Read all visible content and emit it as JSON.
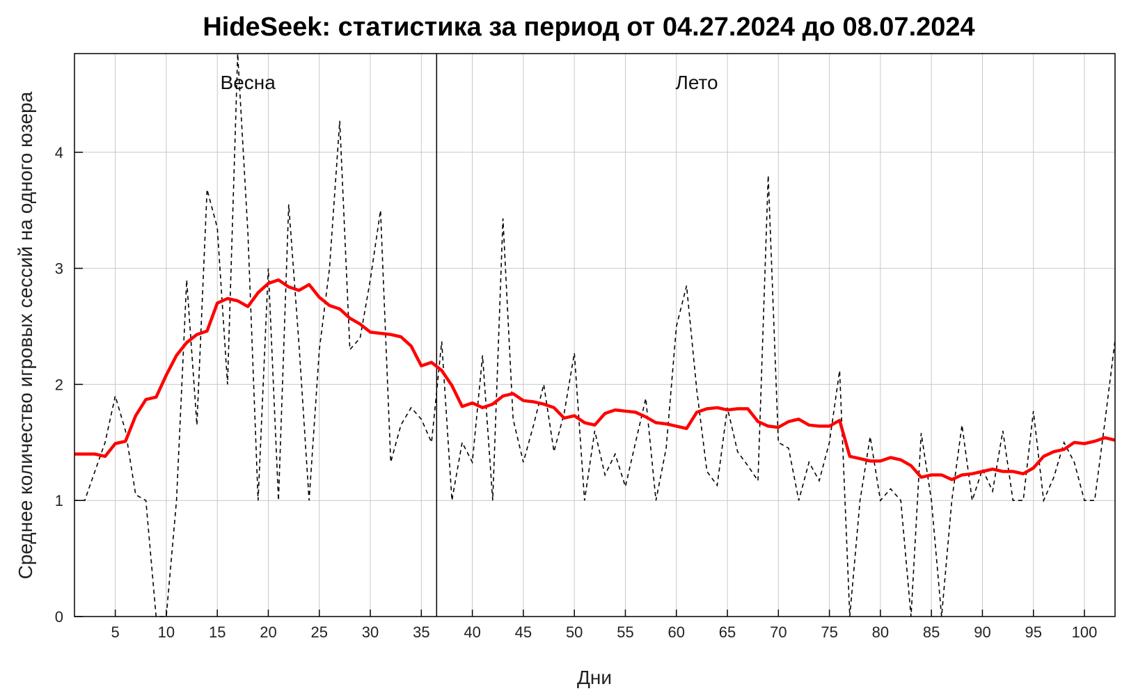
{
  "chart_data": {
    "type": "line",
    "title": "HideSeek: статистика за период от 04.27.2024 до 08.07.2024",
    "xlabel": "Дни",
    "ylabel": "Среднее количество игровых сессий на одного юзера",
    "xlim": [
      1,
      103
    ],
    "ylim": [
      0,
      4.85
    ],
    "grid": true,
    "x_ticks": [
      5,
      10,
      15,
      20,
      25,
      30,
      35,
      40,
      45,
      50,
      55,
      60,
      65,
      70,
      75,
      80,
      85,
      90,
      95,
      100
    ],
    "y_ticks": [
      0,
      1,
      2,
      3,
      4
    ],
    "x": [
      1,
      2,
      3,
      4,
      5,
      6,
      7,
      8,
      9,
      10,
      11,
      12,
      13,
      14,
      15,
      16,
      17,
      18,
      19,
      20,
      21,
      22,
      23,
      24,
      25,
      26,
      27,
      28,
      29,
      30,
      31,
      32,
      33,
      34,
      35,
      36,
      37,
      38,
      39,
      40,
      41,
      42,
      43,
      44,
      45,
      46,
      47,
      48,
      49,
      50,
      51,
      52,
      53,
      54,
      55,
      56,
      57,
      58,
      59,
      60,
      61,
      62,
      63,
      64,
      65,
      66,
      67,
      68,
      69,
      70,
      71,
      72,
      73,
      74,
      75,
      76,
      77,
      78,
      79,
      80,
      81,
      82,
      83,
      84,
      85,
      86,
      87,
      88,
      89,
      90,
      91,
      92,
      93,
      94,
      95,
      96,
      97,
      98,
      99,
      100,
      101,
      102,
      103
    ],
    "series": [
      {
        "style": "dashed",
        "color": "#000000",
        "values": [
          1.0,
          1.0,
          1.25,
          1.5,
          1.9,
          1.6,
          1.05,
          1.0,
          0.0,
          0.0,
          1.0,
          2.9,
          1.65,
          3.68,
          3.35,
          2.0,
          4.85,
          3.3,
          1.0,
          3.0,
          1.0,
          3.55,
          2.35,
          1.0,
          2.3,
          3.0,
          4.27,
          2.3,
          2.4,
          2.9,
          3.5,
          1.33,
          1.65,
          1.8,
          1.7,
          1.5,
          2.37,
          1.0,
          1.5,
          1.33,
          2.25,
          1.0,
          3.43,
          1.7,
          1.33,
          1.65,
          2.0,
          1.42,
          1.75,
          2.27,
          1.0,
          1.6,
          1.22,
          1.4,
          1.12,
          1.5,
          1.88,
          1.0,
          1.45,
          2.5,
          2.85,
          1.95,
          1.25,
          1.13,
          1.8,
          1.42,
          1.3,
          1.17,
          3.8,
          1.5,
          1.45,
          1.0,
          1.33,
          1.17,
          1.5,
          2.12,
          0.0,
          1.0,
          1.55,
          1.0,
          1.1,
          1.0,
          0.0,
          1.58,
          1.0,
          0.0,
          1.0,
          1.65,
          1.0,
          1.27,
          1.08,
          1.6,
          1.0,
          1.0,
          1.77,
          1.0,
          1.2,
          1.5,
          1.33,
          1.0,
          1.0,
          1.67,
          2.38
        ]
      },
      {
        "style": "solid",
        "color": "#ff0000",
        "values": [
          1.4,
          1.4,
          1.4,
          1.38,
          1.49,
          1.51,
          1.73,
          1.87,
          1.89,
          2.08,
          2.25,
          2.36,
          2.43,
          2.46,
          2.7,
          2.74,
          2.72,
          2.67,
          2.79,
          2.87,
          2.9,
          2.84,
          2.81,
          2.86,
          2.75,
          2.68,
          2.65,
          2.57,
          2.52,
          2.45,
          2.44,
          2.43,
          2.41,
          2.33,
          2.16,
          2.19,
          2.12,
          1.99,
          1.81,
          1.84,
          1.8,
          1.83,
          1.9,
          1.92,
          1.86,
          1.85,
          1.83,
          1.8,
          1.71,
          1.73,
          1.67,
          1.65,
          1.75,
          1.78,
          1.77,
          1.76,
          1.72,
          1.67,
          1.66,
          1.64,
          1.62,
          1.76,
          1.79,
          1.8,
          1.78,
          1.79,
          1.79,
          1.68,
          1.64,
          1.63,
          1.68,
          1.7,
          1.65,
          1.64,
          1.64,
          1.69,
          1.38,
          1.36,
          1.34,
          1.34,
          1.37,
          1.35,
          1.3,
          1.2,
          1.22,
          1.22,
          1.18,
          1.22,
          1.23,
          1.25,
          1.27,
          1.25,
          1.25,
          1.23,
          1.28,
          1.38,
          1.42,
          1.44,
          1.5,
          1.49,
          1.51,
          1.54,
          1.52
        ]
      }
    ],
    "vline_x": 36.5,
    "annotations": [
      {
        "text": "Весна",
        "x": 18
      },
      {
        "text": "Лето",
        "x": 62
      }
    ]
  }
}
